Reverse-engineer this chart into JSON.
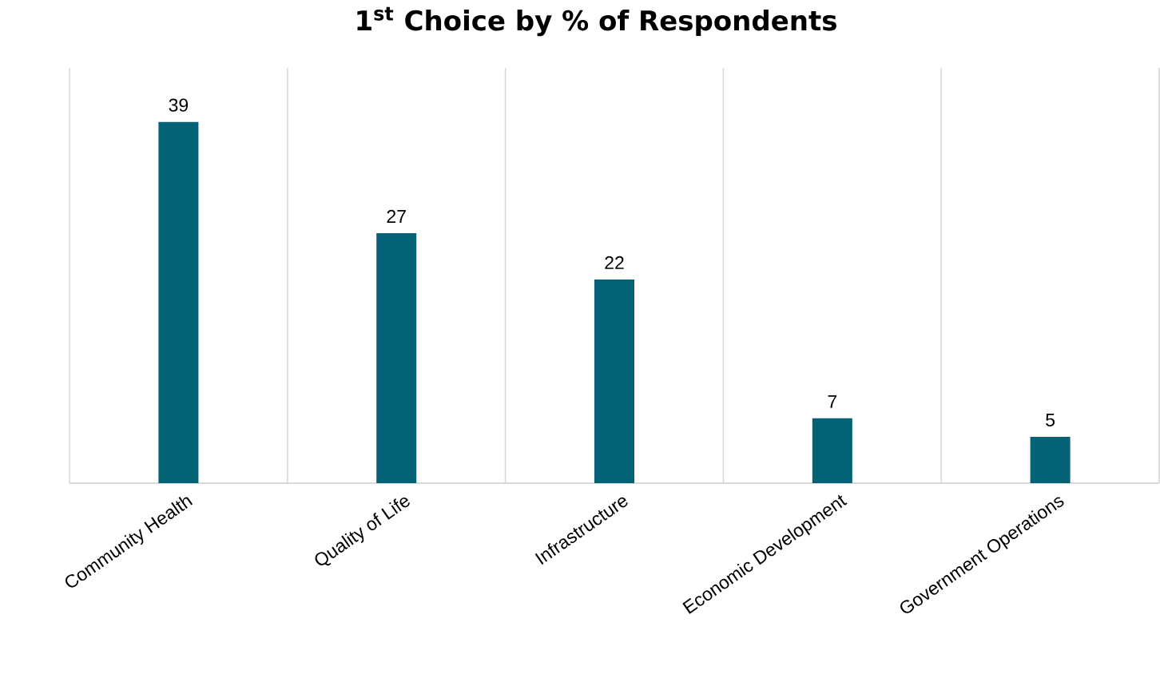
{
  "chart_data": {
    "type": "bar",
    "title": "1$^{st}$ Choice by % of Respondents",
    "categories": [
      "Community Health",
      "Quality of Life",
      "Infrastructure",
      "Economic Development",
      "Government Operations"
    ],
    "values": [
      39,
      27,
      22,
      7,
      5
    ],
    "color": "#046276",
    "data_labels": true,
    "grid": "x"
  }
}
